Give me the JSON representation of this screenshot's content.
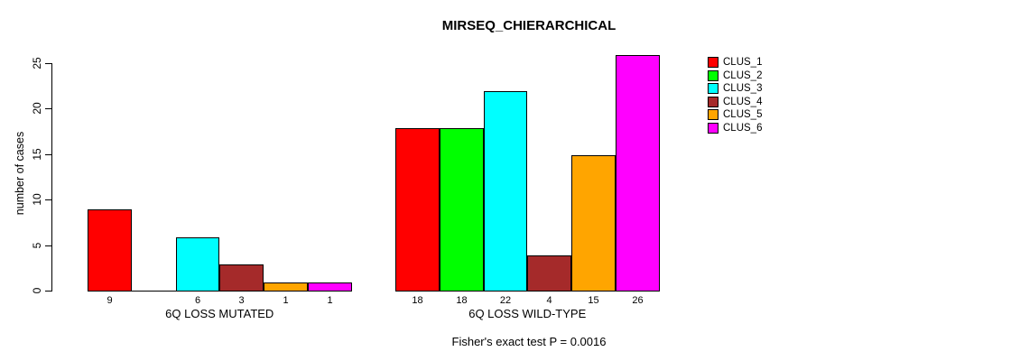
{
  "chart_data": {
    "type": "bar",
    "title": "MIRSEQ_CHIERARCHICAL",
    "ylabel": "number of cases",
    "ylim": [
      0,
      26
    ],
    "yticks": [
      0,
      5,
      10,
      15,
      20,
      25
    ],
    "grid": false,
    "legend_position": "right",
    "categories": [
      "6Q LOSS MUTATED",
      "6Q LOSS WILD-TYPE"
    ],
    "series": [
      {
        "name": "CLUS_1",
        "color": "#FF0000",
        "values": [
          9,
          18
        ]
      },
      {
        "name": "CLUS_2",
        "color": "#00FF00",
        "values": [
          0,
          18
        ]
      },
      {
        "name": "CLUS_3",
        "color": "#00FFFF",
        "values": [
          6,
          22
        ]
      },
      {
        "name": "CLUS_4",
        "color": "#A52A2A",
        "values": [
          3,
          4
        ]
      },
      {
        "name": "CLUS_5",
        "color": "#FFA500",
        "values": [
          1,
          15
        ]
      },
      {
        "name": "CLUS_6",
        "color": "#FF00FF",
        "values": [
          1,
          26
        ]
      }
    ],
    "bar_value_labels": {
      "shown": true,
      "note": "value printed under each bar; zero-height bars have no label"
    },
    "annotation": "Fisher's exact test P = 0.0016"
  }
}
